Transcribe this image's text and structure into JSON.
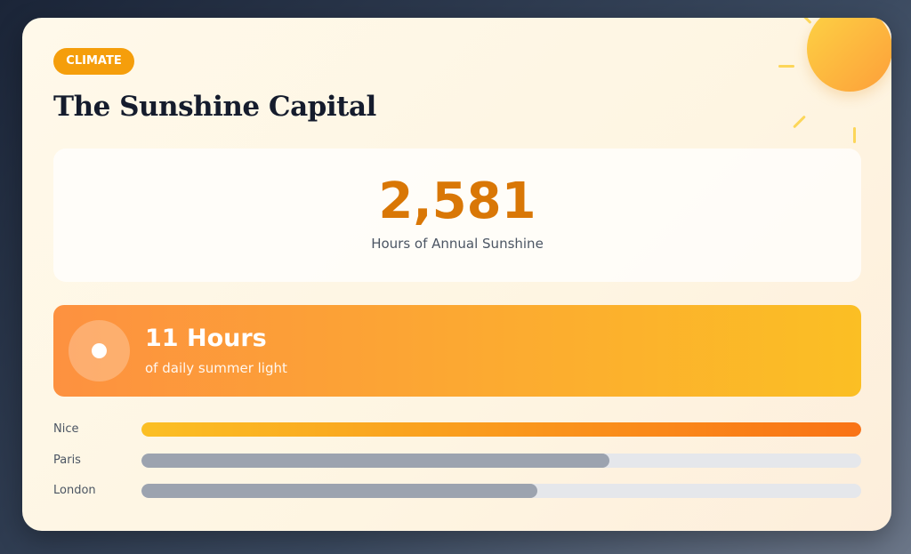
{
  "badge": "CLIMATE",
  "title": "The Sunshine Capital",
  "stat": {
    "value": "2,581",
    "label": "Hours of Annual Sunshine"
  },
  "banner": {
    "icon": "sun-icon",
    "headline": "11 Hours",
    "subtitle": "of daily summer light"
  },
  "comparison": [
    {
      "city": "Nice",
      "percent": 100,
      "highlight": true
    },
    {
      "city": "Paris",
      "percent": 65,
      "highlight": false
    },
    {
      "city": "London",
      "percent": 55,
      "highlight": false
    }
  ],
  "colors": {
    "accent": "#f59e0b",
    "number": "#d97706",
    "bar_gray": "#9ca3af",
    "track": "#e5e7eb"
  }
}
